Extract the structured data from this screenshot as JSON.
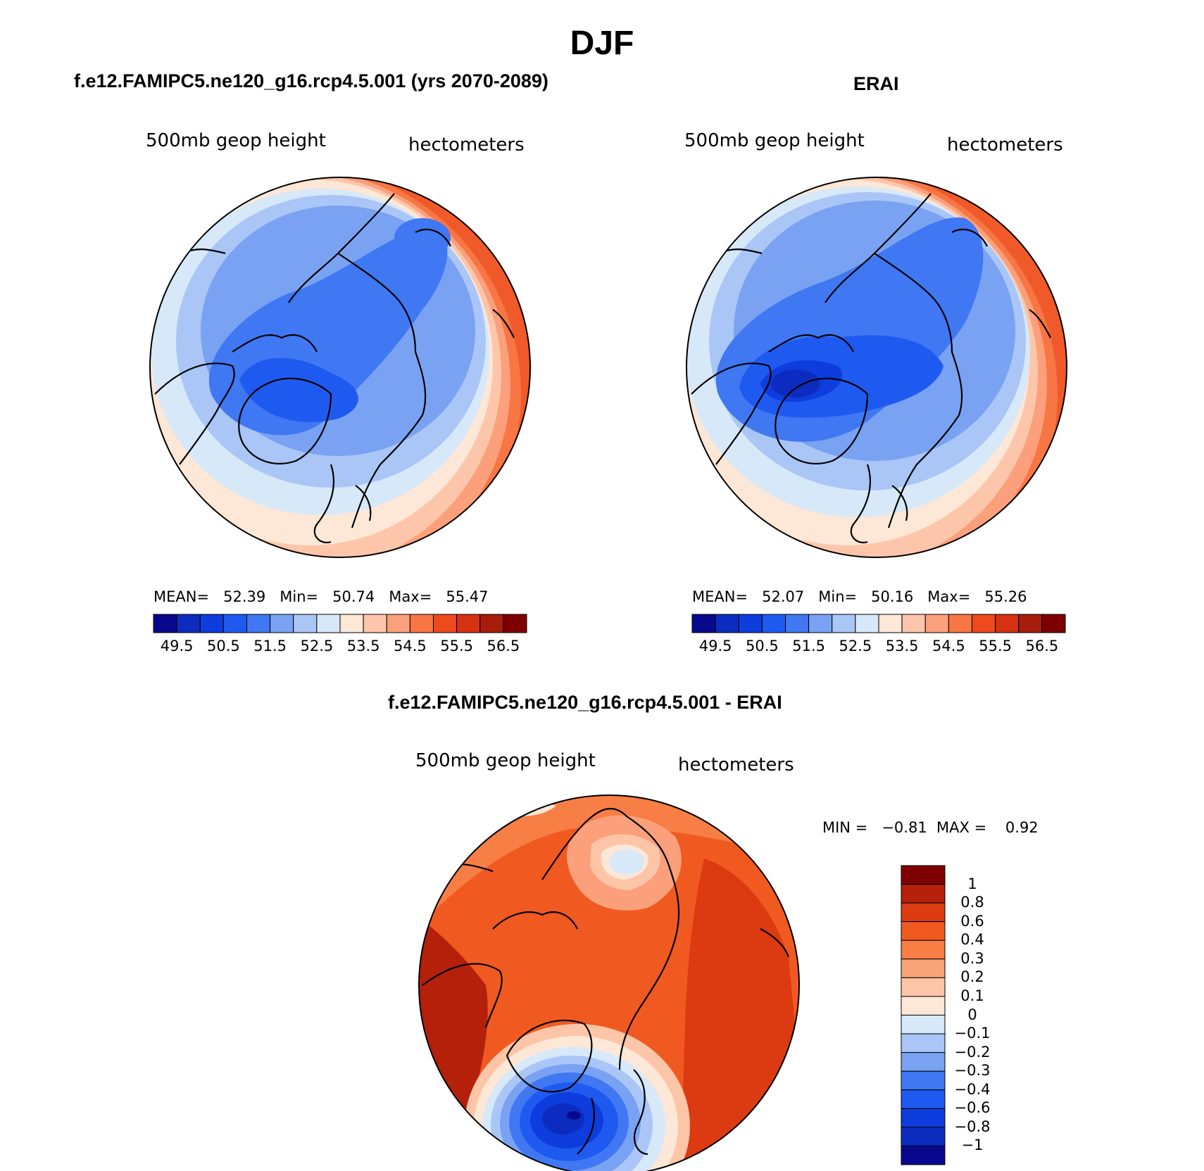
{
  "title": "DJF",
  "panels": [
    {
      "id": "model",
      "title": "f.e12.FAMIPC5.ne120_g16.rcp4.5.001 (yrs 2070-2089)",
      "left_label": "500mb geop height",
      "right_label": "hectometers",
      "stats": {
        "mean_label": "MEAN=",
        "mean": "52.39",
        "min_label": "Min=",
        "min": "50.74",
        "max_label": "Max=",
        "max": "55.47"
      }
    },
    {
      "id": "erai",
      "title": "ERAI",
      "left_label": "500mb geop height",
      "right_label": "hectometers",
      "stats": {
        "mean_label": "MEAN=",
        "mean": "52.07",
        "min_label": "Min=",
        "min": "50.16",
        "max_label": "Max=",
        "max": "55.26"
      }
    },
    {
      "id": "diff",
      "title": "f.e12.FAMIPC5.ne120_g16.rcp4.5.001 - ERAI",
      "left_label": "500mb geop height",
      "right_label": "hectometers",
      "stats": {
        "min_label": "MIN =",
        "min": "−0.81",
        "max_label": "MAX =",
        "max": "0.92"
      }
    }
  ],
  "colorbar_abs": {
    "colors": [
      "#08088f",
      "#0c2cc0",
      "#0d3ddc",
      "#1f5af0",
      "#3f78f2",
      "#7aa2f3",
      "#aac6f7",
      "#d7e8f9",
      "#fde7d6",
      "#fdc6aa",
      "#fba07b",
      "#f87544",
      "#ee4a1c",
      "#d73212",
      "#a81c0c",
      "#7f0000"
    ],
    "ticks": [
      "49.5",
      "50.5",
      "51.5",
      "52.5",
      "53.5",
      "54.5",
      "55.5",
      "56.5"
    ]
  },
  "colorbar_diff": {
    "colors": [
      "#7f0000",
      "#b4200a",
      "#dc3a10",
      "#f05a20",
      "#f77e45",
      "#faa278",
      "#fdc5a8",
      "#fde7d6",
      "#d7e8f9",
      "#aac6f7",
      "#7aa2f3",
      "#3f78f2",
      "#1f5af0",
      "#0d3ddc",
      "#0c2cc0",
      "#08088f"
    ],
    "ticks": [
      "1",
      "0.8",
      "0.6",
      "0.4",
      "0.3",
      "0.2",
      "0.1",
      "0",
      "−0.1",
      "−0.2",
      "−0.3",
      "−0.4",
      "−0.6",
      "−0.8",
      "−1"
    ]
  }
}
